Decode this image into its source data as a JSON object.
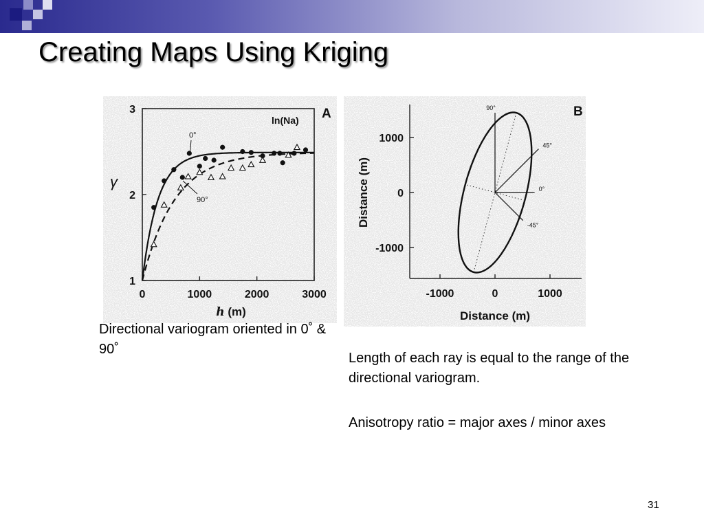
{
  "slide": {
    "title": "Creating Maps Using Kriging",
    "page_number": "31",
    "caption_variogram": "Directional variogram oriented in 0˚ & 90˚",
    "caption_ray": "Length of each ray is equal to the range of the directional variogram.",
    "caption_anisotropy": "Anisotropy ratio = major axes / minor axes",
    "accent_color": "#2a2a8e"
  },
  "chart_data": [
    {
      "type": "scatter",
      "panel_label": "A",
      "title": "ln(Na)",
      "xlabel": "h (m)",
      "ylabel": "γ",
      "xlim": [
        0,
        3000
      ],
      "ylim": [
        1,
        3
      ],
      "x_ticks": [
        "0",
        "1000",
        "2000",
        "3000"
      ],
      "y_ticks": [
        "1",
        "2",
        "3"
      ],
      "series": [
        {
          "name": "0°",
          "marker": "filled-circle",
          "points": [
            [
              200,
              1.85
            ],
            [
              380,
              2.16
            ],
            [
              550,
              2.29
            ],
            [
              700,
              2.2
            ],
            [
              820,
              2.48
            ],
            [
              1000,
              2.33
            ],
            [
              1100,
              2.42
            ],
            [
              1250,
              2.4
            ],
            [
              1400,
              2.55
            ],
            [
              1750,
              2.5
            ],
            [
              1900,
              2.49
            ],
            [
              2100,
              2.45
            ],
            [
              2300,
              2.48
            ],
            [
              2400,
              2.48
            ],
            [
              2450,
              2.37
            ],
            [
              2650,
              2.48
            ],
            [
              2850,
              2.52
            ]
          ],
          "fit": "solid"
        },
        {
          "name": "90°",
          "marker": "open-triangle",
          "points": [
            [
              200,
              1.42
            ],
            [
              380,
              1.88
            ],
            [
              670,
              2.08
            ],
            [
              800,
              2.21
            ],
            [
              1000,
              2.26
            ],
            [
              1200,
              2.2
            ],
            [
              1400,
              2.21
            ],
            [
              1550,
              2.31
            ],
            [
              1750,
              2.31
            ],
            [
              1900,
              2.35
            ],
            [
              2100,
              2.4
            ],
            [
              2550,
              2.46
            ],
            [
              2700,
              2.55
            ]
          ],
          "fit": "dashed"
        }
      ]
    },
    {
      "type": "scatter",
      "panel_label": "B",
      "xlabel": "Distance (m)",
      "ylabel": "Distance (m)",
      "xlim": [
        -1500,
        1600
      ],
      "ylim": [
        -1500,
        1500
      ],
      "x_ticks": [
        "-1000",
        "0",
        "1000"
      ],
      "y_ticks": [
        "1000",
        "0",
        "-1000"
      ],
      "ellipse": {
        "semi_major": 1500,
        "semi_minor": 560,
        "angle_from_x_deg": 75
      },
      "rays": [
        {
          "label": "90°",
          "angle_deg": 90,
          "length_m": 1450
        },
        {
          "label": "45°",
          "angle_deg": 45,
          "length_m": 1120
        },
        {
          "label": "0°",
          "angle_deg": 0,
          "length_m": 720
        },
        {
          "label": "-45°",
          "angle_deg": -45,
          "length_m": 720
        }
      ]
    }
  ]
}
